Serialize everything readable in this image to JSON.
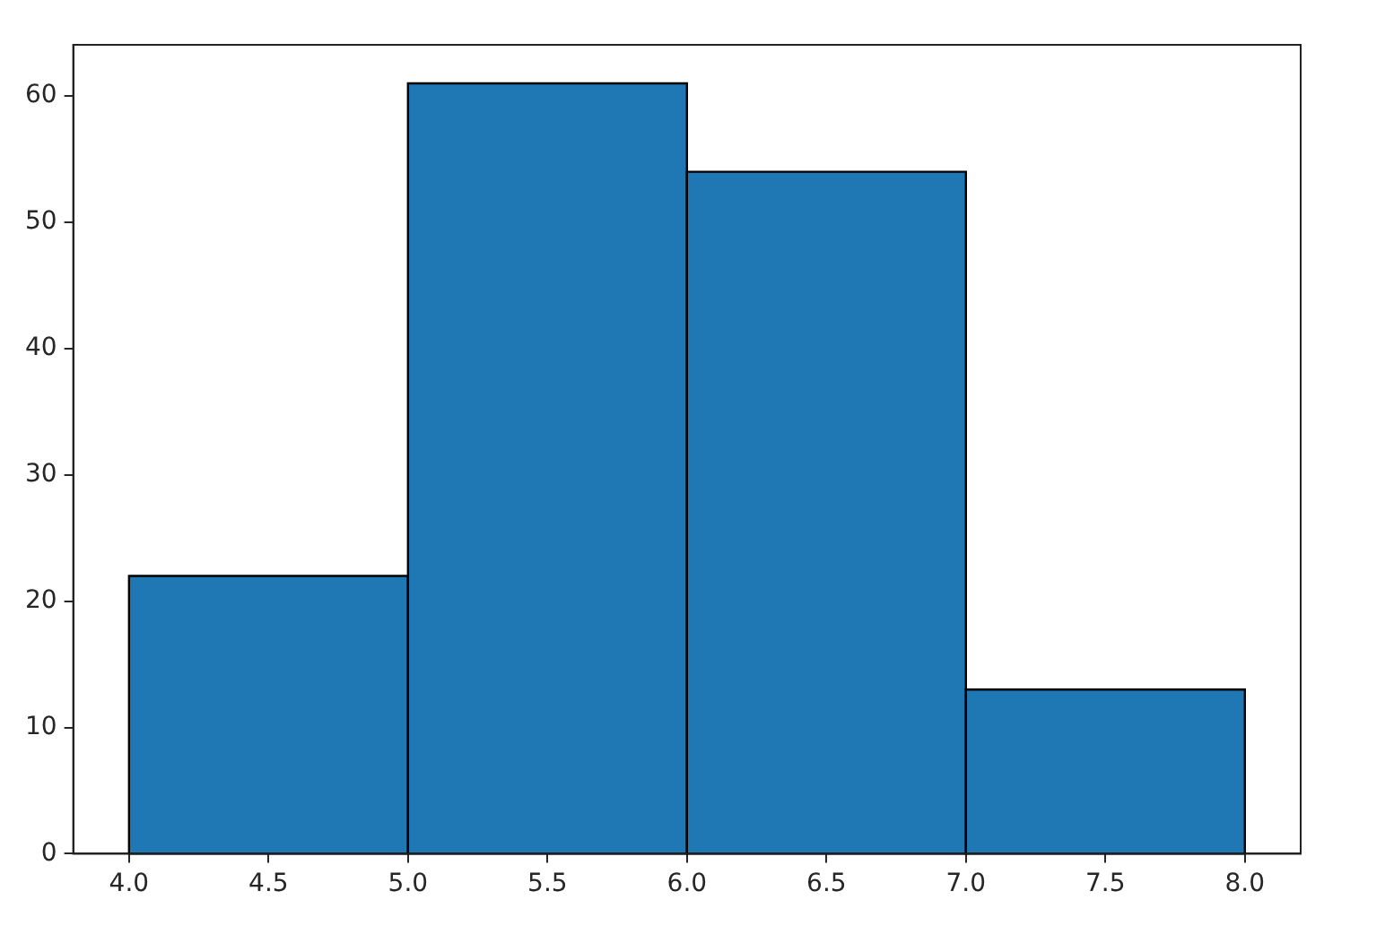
{
  "chart_data": {
    "type": "histogram",
    "bins": [
      4.0,
      5.0,
      6.0,
      7.0,
      8.0
    ],
    "values": [
      22,
      61,
      54,
      13
    ],
    "color": "#1f77b4",
    "xlim": [
      3.8,
      8.2
    ],
    "xticks": [
      {
        "value": 4,
        "label": "4.0"
      },
      {
        "value": 4.5,
        "label": "4.5"
      },
      {
        "value": 5,
        "label": "5.0"
      },
      {
        "value": 5.5,
        "label": "5.5"
      },
      {
        "value": 6,
        "label": "6.0"
      },
      {
        "value": 6.5,
        "label": "6.5"
      },
      {
        "value": 7,
        "label": "7.0"
      },
      {
        "value": 7.5,
        "label": "7.5"
      },
      {
        "value": 8,
        "label": "8.0"
      }
    ],
    "ylim": [
      0,
      64.05
    ],
    "yticks": [
      0,
      10,
      20,
      30,
      40,
      50,
      60
    ],
    "grid": false
  }
}
